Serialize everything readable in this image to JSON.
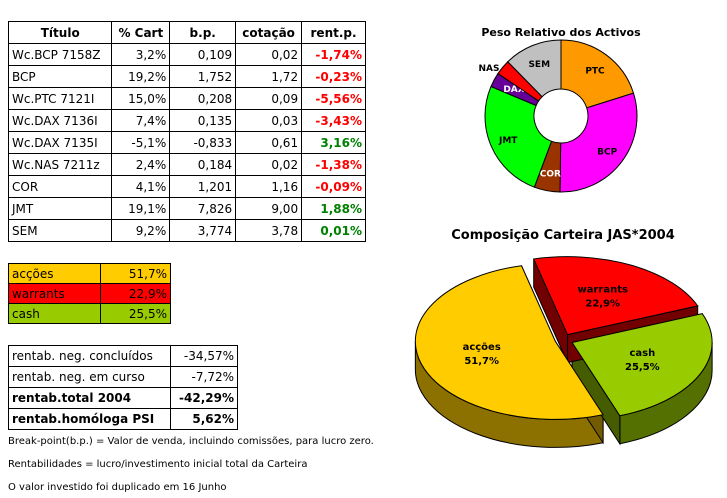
{
  "main_table": {
    "headers": [
      "Título",
      "% Cart",
      "b.p.",
      "cotação",
      "rent.p."
    ],
    "rows": [
      {
        "titulo": "Wc.BCP 7158Z",
        "cart": "3,2%",
        "bp": "0,109",
        "cotacao": "0,02",
        "rent": "-1,74%",
        "sign": "neg"
      },
      {
        "titulo": "BCP",
        "cart": "19,2%",
        "bp": "1,752",
        "cotacao": "1,72",
        "rent": "-0,23%",
        "sign": "neg"
      },
      {
        "titulo": "Wc.PTC 7121I",
        "cart": "15,0%",
        "bp": "0,208",
        "cotacao": "0,09",
        "rent": "-5,56%",
        "sign": "neg"
      },
      {
        "titulo": "Wc.DAX 7136I",
        "cart": "7,4%",
        "bp": "0,135",
        "cotacao": "0,03",
        "rent": "-3,43%",
        "sign": "neg"
      },
      {
        "titulo": "Wc.DAX 7135I",
        "cart": "-5,1%",
        "bp": "-0,833",
        "cotacao": "0,61",
        "rent": "3,16%",
        "sign": "pos"
      },
      {
        "titulo": "Wc.NAS 7211z",
        "cart": "2,4%",
        "bp": "0,184",
        "cotacao": "0,02",
        "rent": "-1,38%",
        "sign": "neg"
      },
      {
        "titulo": "COR",
        "cart": "4,1%",
        "bp": "1,201",
        "cotacao": "1,16",
        "rent": "-0,09%",
        "sign": "neg"
      },
      {
        "titulo": "JMT",
        "cart": "19,1%",
        "bp": "7,826",
        "cotacao": "9,00",
        "rent": "1,88%",
        "sign": "pos"
      },
      {
        "titulo": "SEM",
        "cart": "9,2%",
        "bp": "3,774",
        "cotacao": "3,78",
        "rent": "0,01%",
        "sign": "pos"
      }
    ]
  },
  "allocation_table": [
    {
      "label": "acções",
      "value": "51,7%",
      "color": "#ffcc00"
    },
    {
      "label": "warrants",
      "value": "22,9%",
      "color": "#ff0000"
    },
    {
      "label": "cash",
      "value": "25,5%",
      "color": "#99cc00"
    }
  ],
  "performance_table": [
    {
      "label": "rentab. neg. concluídos",
      "value": "-34,57%",
      "bold": false
    },
    {
      "label": "rentab. neg. em curso",
      "value": "-7,72%",
      "bold": false
    },
    {
      "label": "rentab.total 2004",
      "value": "-42,29%",
      "bold": true
    },
    {
      "label": "rentab.homóloga PSI",
      "value": "5,62%",
      "bold": true
    }
  ],
  "notes": [
    "Break-point(b.p.) = Valor de venda, incluindo comissões, para lucro zero.",
    "Rentabilidades = lucro/investimento inicial total da Carteira",
    "O valor investido foi duplicado em 16 Junho"
  ],
  "chart_data": [
    {
      "type": "pie",
      "subtype": "doughnut",
      "title": "Peso Relativo dos Activos",
      "categories": [
        "PTC",
        "BCP",
        "COR",
        "JMT",
        "DAX",
        "NAS",
        "SEM"
      ],
      "values": [
        15.0,
        22.4,
        4.1,
        19.1,
        2.3,
        2.4,
        9.2
      ],
      "colors": [
        "#ff9900",
        "#ff00ff",
        "#993300",
        "#00ff00",
        "#660099",
        "#ff0000",
        "#c0c0c0"
      ],
      "label_colors": [
        "#000000",
        "#000000",
        "#ffffff",
        "#000000",
        "#ffffff",
        "#000000",
        "#000000"
      ]
    },
    {
      "type": "pie",
      "subtype": "3d-exploded",
      "title": "Composição Carteira JAS*2004",
      "categories": [
        "warrants",
        "cash",
        "acções"
      ],
      "values": [
        22.9,
        25.5,
        51.7
      ],
      "value_labels": [
        "22,9%",
        "25,5%",
        "51,7%"
      ],
      "colors": [
        "#ff0000",
        "#99cc00",
        "#ffcc00"
      ]
    }
  ]
}
